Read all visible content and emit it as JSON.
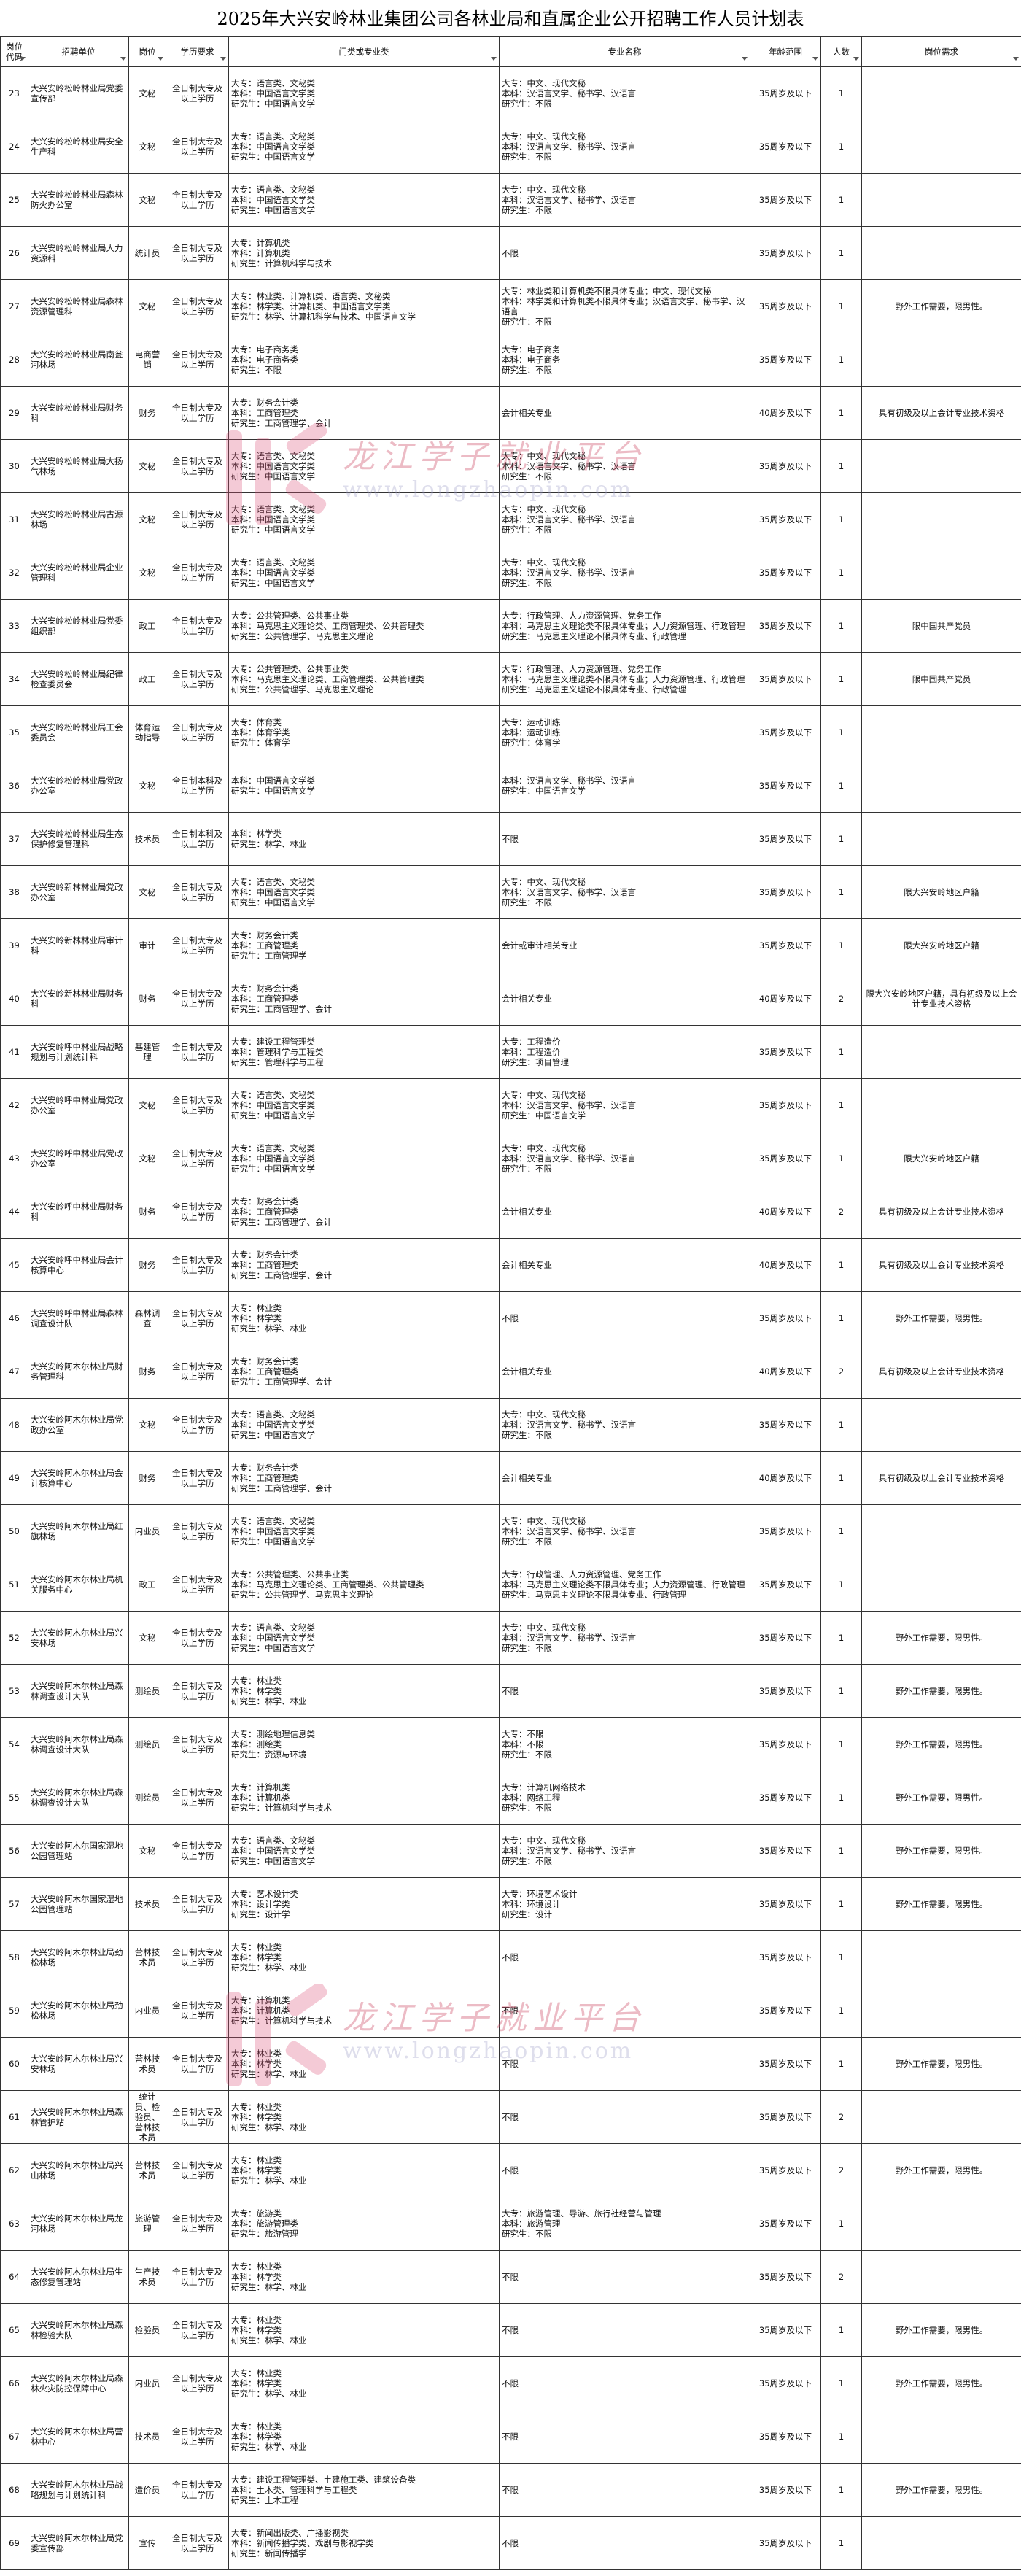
{
  "title": "2025年大兴安岭林业集团公司各林业局和直属企业公开招聘工作人员计划表",
  "watermark": {
    "name": "龙江学子就业平台",
    "url": "www.longzhaopin.com"
  },
  "table": {
    "header": [
      "岗位代码",
      "招聘单位",
      "岗位",
      "学历要求",
      "门类或专业类",
      "专业名称",
      "年龄范围",
      "人数",
      "岗位需求"
    ],
    "rows": [
      [
        "23",
        "大兴安岭松岭林业局党委宣传部",
        "文秘",
        "全日制大专及以上学历",
        "大专：语言类、文秘类\n本科：中国语言文学类\n研究生：中国语言文学",
        "大专：中文、现代文秘\n本科：汉语言文学、秘书学、汉语言\n研究生：不限",
        "35周岁及以下",
        "1",
        ""
      ],
      [
        "24",
        "大兴安岭松岭林业局安全生产科",
        "文秘",
        "全日制大专及以上学历",
        "大专：语言类、文秘类\n本科：中国语言文学类\n研究生：中国语言文学",
        "大专：中文、现代文秘\n本科：汉语言文学、秘书学、汉语言\n研究生：不限",
        "35周岁及以下",
        "1",
        ""
      ],
      [
        "25",
        "大兴安岭松岭林业局森林防火办公室",
        "文秘",
        "全日制大专及以上学历",
        "大专：语言类、文秘类\n本科：中国语言文学类\n研究生：中国语言文学",
        "大专：中文、现代文秘\n本科：汉语言文学、秘书学、汉语言\n研究生：不限",
        "35周岁及以下",
        "1",
        ""
      ],
      [
        "26",
        "大兴安岭松岭林业局人力资源科",
        "统计员",
        "全日制大专及以上学历",
        "大专：计算机类\n本科：计算机类\n研究生：计算机科学与技术",
        "不限",
        "35周岁及以下",
        "1",
        ""
      ],
      [
        "27",
        "大兴安岭松岭林业局森林资源管理科",
        "文秘",
        "全日制大专及以上学历",
        "大专：林业类、计算机类、语言类、文秘类\n本科：林学类、计算机类、中国语言文学类\n研究生：林学、计算机科学与技术、中国语言文学",
        "大专：林业类和计算机类不限具体专业；中文、现代文秘\n本科：林学类和计算机类不限具体专业；汉语言文学、秘书学、汉语言\n研究生：不限",
        "35周岁及以下",
        "1",
        "野外工作需要，限男性。"
      ],
      [
        "28",
        "大兴安岭松岭林业局南瓮河林场",
        "电商营销",
        "全日制大专及以上学历",
        "大专：电子商务类\n本科：电子商务类\n研究生：不限",
        "大专：电子商务\n本科：电子商务\n研究生：不限",
        "35周岁及以下",
        "1",
        ""
      ],
      [
        "29",
        "大兴安岭松岭林业局财务科",
        "财务",
        "全日制大专及以上学历",
        "大专：财务会计类\n本科：工商管理类\n研究生：工商管理学、会计",
        "会计相关专业",
        "40周岁及以下",
        "1",
        "具有初级及以上会计专业技术资格"
      ],
      [
        "30",
        "大兴安岭松岭林业局大扬气林场",
        "文秘",
        "全日制大专及以上学历",
        "大专：语言类、文秘类\n本科：中国语言文学类\n研究生：中国语言文学",
        "大专：中文、现代文秘\n本科：汉语言文学、秘书学、汉语言\n研究生：不限",
        "35周岁及以下",
        "1",
        ""
      ],
      [
        "31",
        "大兴安岭松岭林业局古源林场",
        "文秘",
        "全日制大专及以上学历",
        "大专：语言类、文秘类\n本科：中国语言文学类\n研究生：中国语言文学",
        "大专：中文、现代文秘\n本科：汉语言文学、秘书学、汉语言\n研究生：不限",
        "35周岁及以下",
        "1",
        ""
      ],
      [
        "32",
        "大兴安岭松岭林业局企业管理科",
        "文秘",
        "全日制大专及以上学历",
        "大专：语言类、文秘类\n本科：中国语言文学类\n研究生：中国语言文学",
        "大专：中文、现代文秘\n本科：汉语言文学、秘书学、汉语言\n研究生：不限",
        "35周岁及以下",
        "1",
        ""
      ],
      [
        "33",
        "大兴安岭松岭林业局党委组织部",
        "政工",
        "全日制大专及以上学历",
        "大专：公共管理类、公共事业类\n本科：马克思主义理论类、工商管理类、公共管理类\n研究生：公共管理学、马克思主义理论",
        "大专：行政管理、人力资源管理、党务工作\n本科：马克思主义理论类不限具体专业；人力资源管理、行政管理\n研究生：马克思主义理论不限具体专业、行政管理",
        "35周岁及以下",
        "1",
        "限中国共产党员"
      ],
      [
        "34",
        "大兴安岭松岭林业局纪律检查委员会",
        "政工",
        "全日制大专及以上学历",
        "大专：公共管理类、公共事业类\n本科：马克思主义理论类、工商管理类、公共管理类\n研究生：公共管理学、马克思主义理论",
        "大专：行政管理、人力资源管理、党务工作\n本科：马克思主义理论类不限具体专业；人力资源管理、行政管理\n研究生：马克思主义理论不限具体专业、行政管理",
        "35周岁及以下",
        "1",
        "限中国共产党员"
      ],
      [
        "35",
        "大兴安岭松岭林业局工会委员会",
        "体育运动指导",
        "全日制大专及以上学历",
        "大专：体育类\n本科：体育学类\n研究生：体育学",
        "大专：运动训练\n本科：运动训练\n研究生：体育学",
        "35周岁及以下",
        "1",
        ""
      ],
      [
        "36",
        "大兴安岭松岭林业局党政办公室",
        "文秘",
        "全日制本科及以上学历",
        "本科：中国语言文学类\n研究生：中国语言文学",
        "本科：汉语言文学、秘书学、汉语言\n研究生：中国语言文学",
        "35周岁及以下",
        "1",
        ""
      ],
      [
        "37",
        "大兴安岭松岭林业局生态保护修复管理科",
        "技术员",
        "全日制本科及以上学历",
        "本科：林学类\n研究生：林学、林业",
        "不限",
        "35周岁及以下",
        "1",
        ""
      ],
      [
        "38",
        "大兴安岭新林林业局党政办公室",
        "文秘",
        "全日制大专及以上学历",
        "大专：语言类、文秘类\n本科：中国语言文学类\n研究生：中国语言文学",
        "大专：中文、现代文秘\n本科：汉语言文学、秘书学、汉语言\n研究生：不限",
        "35周岁及以下",
        "1",
        "限大兴安岭地区户籍"
      ],
      [
        "39",
        "大兴安岭新林林业局审计科",
        "审计",
        "全日制大专及以上学历",
        "大专：财务会计类\n本科：工商管理类\n研究生：工商管理学",
        "会计或审计相关专业",
        "35周岁及以下",
        "1",
        "限大兴安岭地区户籍"
      ],
      [
        "40",
        "大兴安岭新林林业局财务科",
        "财务",
        "全日制大专及以上学历",
        "大专：财务会计类\n本科：工商管理类\n研究生：工商管理学、会计",
        "会计相关专业",
        "40周岁及以下",
        "2",
        "限大兴安岭地区户籍，具有初级及以上会计专业技术资格"
      ],
      [
        "41",
        "大兴安岭呼中林业局战略规划与计划统计科",
        "基建管理",
        "全日制大专及以上学历",
        "大专：建设工程管理类\n本科：管理科学与工程类\n研究生：管理科学与工程",
        "大专：工程造价\n本科：工程造价\n研究生：项目管理",
        "35周岁及以下",
        "1",
        ""
      ],
      [
        "42",
        "大兴安岭呼中林业局党政办公室",
        "文秘",
        "全日制大专及以上学历",
        "大专：语言类、文秘类\n本科：中国语言文学类\n研究生：中国语言文学",
        "大专：中文、现代文秘\n本科：汉语言文学、秘书学、汉语言\n研究生：中国语言文学",
        "35周岁及以下",
        "1",
        ""
      ],
      [
        "43",
        "大兴安岭呼中林业局党政办公室",
        "文秘",
        "全日制大专及以上学历",
        "大专：语言类、文秘类\n本科：中国语言文学类\n研究生：中国语言文学",
        "大专：中文、现代文秘\n本科：汉语言文学、秘书学、汉语言\n研究生：不限",
        "35周岁及以下",
        "1",
        "限大兴安岭地区户籍"
      ],
      [
        "44",
        "大兴安岭呼中林业局财务科",
        "财务",
        "全日制大专及以上学历",
        "大专：财务会计类\n本科：工商管理类\n研究生：工商管理学、会计",
        "会计相关专业",
        "40周岁及以下",
        "2",
        "具有初级及以上会计专业技术资格"
      ],
      [
        "45",
        "大兴安岭呼中林业局会计核算中心",
        "财务",
        "全日制大专及以上学历",
        "大专：财务会计类\n本科：工商管理类\n研究生：工商管理学、会计",
        "会计相关专业",
        "40周岁及以下",
        "1",
        "具有初级及以上会计专业技术资格"
      ],
      [
        "46",
        "大兴安岭呼中林业局森林调查设计队",
        "森林调查",
        "全日制大专及以上学历",
        "大专：林业类\n本科：林学类\n研究生：林学、林业",
        "不限",
        "35周岁及以下",
        "1",
        "野外工作需要，限男性。"
      ],
      [
        "47",
        "大兴安岭阿木尔林业局财务管理科",
        "财务",
        "全日制大专及以上学历",
        "大专：财务会计类\n本科：工商管理类\n研究生：工商管理学、会计",
        "会计相关专业",
        "40周岁及以下",
        "2",
        "具有初级及以上会计专业技术资格"
      ],
      [
        "48",
        "大兴安岭阿木尔林业局党政办公室",
        "文秘",
        "全日制大专及以上学历",
        "大专：语言类、文秘类\n本科：中国语言文学类\n研究生：中国语言文学",
        "大专：中文、现代文秘\n本科：汉语言文学、秘书学、汉语言\n研究生：不限",
        "35周岁及以下",
        "1",
        ""
      ],
      [
        "49",
        "大兴安岭阿木尔林业局会计核算中心",
        "财务",
        "全日制大专及以上学历",
        "大专：财务会计类\n本科：工商管理类\n研究生：工商管理学、会计",
        "会计相关专业",
        "40周岁及以下",
        "1",
        "具有初级及以上会计专业技术资格"
      ],
      [
        "50",
        "大兴安岭阿木尔林业局红旗林场",
        "内业员",
        "全日制大专及以上学历",
        "大专：语言类、文秘类\n本科：中国语言文学类\n研究生：中国语言文学",
        "大专：中文、现代文秘\n本科：汉语言文学、秘书学、汉语言\n研究生：不限",
        "35周岁及以下",
        "1",
        ""
      ],
      [
        "51",
        "大兴安岭阿木尔林业局机关服务中心",
        "政工",
        "全日制大专及以上学历",
        "大专：公共管理类、公共事业类\n本科：马克思主义理论类、工商管理类、公共管理类\n研究生：公共管理学、马克思主义理论",
        "大专：行政管理、人力资源管理、党务工作\n本科：马克思主义理论类不限具体专业；人力资源管理、行政管理\n研究生：马克思主义理论不限具体专业、行政管理",
        "35周岁及以下",
        "1",
        ""
      ],
      [
        "52",
        "大兴安岭阿木尔林业局兴安林场",
        "文秘",
        "全日制大专及以上学历",
        "大专：语言类、文秘类\n本科：中国语言文学类\n研究生：中国语言文学",
        "大专：中文、现代文秘\n本科：汉语言文学、秘书学、汉语言\n研究生：不限",
        "35周岁及以下",
        "1",
        "野外工作需要，限男性。"
      ],
      [
        "53",
        "大兴安岭阿木尔林业局森林调查设计大队",
        "测绘员",
        "全日制大专及以上学历",
        "大专：林业类\n本科：林学类\n研究生：林学、林业",
        "不限",
        "35周岁及以下",
        "1",
        "野外工作需要，限男性。"
      ],
      [
        "54",
        "大兴安岭阿木尔林业局森林调查设计大队",
        "测绘员",
        "全日制大专及以上学历",
        "大专：测绘地理信息类\n本科：测绘类\n研究生：资源与环境",
        "大专：不限\n本科：不限\n研究生：不限",
        "35周岁及以下",
        "1",
        "野外工作需要，限男性。"
      ],
      [
        "55",
        "大兴安岭阿木尔林业局森林调查设计大队",
        "测绘员",
        "全日制大专及以上学历",
        "大专：计算机类\n本科：计算机类\n研究生：计算机科学与技术",
        "大专：计算机网络技术\n本科：网络工程\n研究生：不限",
        "35周岁及以下",
        "1",
        "野外工作需要，限男性。"
      ],
      [
        "56",
        "大兴安岭阿木尔国家湿地公园管理站",
        "文秘",
        "全日制大专及以上学历",
        "大专：语言类、文秘类\n本科：中国语言文学类\n研究生：中国语言文学",
        "大专：中文、现代文秘\n本科：汉语言文学、秘书学、汉语言\n研究生：不限",
        "35周岁及以下",
        "1",
        "野外工作需要，限男性。"
      ],
      [
        "57",
        "大兴安岭阿木尔国家湿地公园管理站",
        "技术员",
        "全日制大专及以上学历",
        "大专：艺术设计类\n本科：设计学类\n研究生：设计学",
        "大专：环境艺术设计\n本科：环境设计\n研究生：设计",
        "35周岁及以下",
        "1",
        "野外工作需要，限男性。"
      ],
      [
        "58",
        "大兴安岭阿木尔林业局劲松林场",
        "营林技术员",
        "全日制大专及以上学历",
        "大专：林业类\n本科：林学类\n研究生：林学、林业",
        "不限",
        "35周岁及以下",
        "1",
        ""
      ],
      [
        "59",
        "大兴安岭阿木尔林业局劲松林场",
        "内业员",
        "全日制大专及以上学历",
        "大专：计算机类\n本科：计算机类\n研究生：计算机科学与技术",
        "不限",
        "35周岁及以下",
        "1",
        ""
      ],
      [
        "60",
        "大兴安岭阿木尔林业局兴安林场",
        "营林技术员",
        "全日制大专及以上学历",
        "大专：林业类\n本科：林学类\n研究生：林学、林业",
        "不限",
        "35周岁及以下",
        "1",
        "野外工作需要，限男性。"
      ],
      [
        "61",
        "大兴安岭阿木尔林业局森林管护站",
        "统计员、检验员、营林技术员",
        "全日制大专及以上学历",
        "大专：林业类\n本科：林学类\n研究生：林学、林业",
        "不限",
        "35周岁及以下",
        "2",
        ""
      ],
      [
        "62",
        "大兴安岭阿木尔林业局兴山林场",
        "营林技术员",
        "全日制大专及以上学历",
        "大专：林业类\n本科：林学类\n研究生：林学、林业",
        "不限",
        "35周岁及以下",
        "2",
        "野外工作需要，限男性。"
      ],
      [
        "63",
        "大兴安岭阿木尔林业局龙河林场",
        "旅游管理",
        "全日制大专及以上学历",
        "大专：旅游类\n本科：旅游管理类\n研究生：旅游管理",
        "大专：旅游管理、导游、旅行社经营与管理\n本科：旅游管理\n研究生：不限",
        "35周岁及以下",
        "1",
        ""
      ],
      [
        "64",
        "大兴安岭阿木尔林业局生态修复管理站",
        "生产技术员",
        "全日制大专及以上学历",
        "大专：林业类\n本科：林学类\n研究生：林学、林业",
        "不限",
        "35周岁及以下",
        "2",
        ""
      ],
      [
        "65",
        "大兴安岭阿木尔林业局森林检验大队",
        "检验员",
        "全日制大专及以上学历",
        "大专：林业类\n本科：林学类\n研究生：林学、林业",
        "不限",
        "35周岁及以下",
        "1",
        "野外工作需要，限男性。"
      ],
      [
        "66",
        "大兴安岭阿木尔林业局森林火灾防控保障中心",
        "内业员",
        "全日制大专及以上学历",
        "大专：林业类\n本科：林学类\n研究生：林学、林业",
        "不限",
        "35周岁及以下",
        "1",
        "野外工作需要，限男性。"
      ],
      [
        "67",
        "大兴安岭阿木尔林业局营林中心",
        "技术员",
        "全日制大专及以上学历",
        "大专：林业类\n本科：林学类\n研究生：林学、林业",
        "不限",
        "35周岁及以下",
        "1",
        ""
      ],
      [
        "68",
        "大兴安岭阿木尔林业局战略规划与计划统计科",
        "造价员",
        "全日制大专及以上学历",
        "大专：建设工程管理类、土建施工类、建筑设备类\n本科：土木类、管理科学与工程类\n研究生：土木工程",
        "不限",
        "35周岁及以下",
        "1",
        "野外工作需要，限男性。"
      ],
      [
        "69",
        "大兴安岭阿木尔林业局党委宣传部",
        "宣传",
        "全日制大专及以上学历",
        "大专：新闻出版类、广播影视类\n本科：新闻传播学类、戏剧与影视学类\n研究生：新闻传播学",
        "不限",
        "35周岁及以下",
        "1",
        ""
      ]
    ]
  }
}
